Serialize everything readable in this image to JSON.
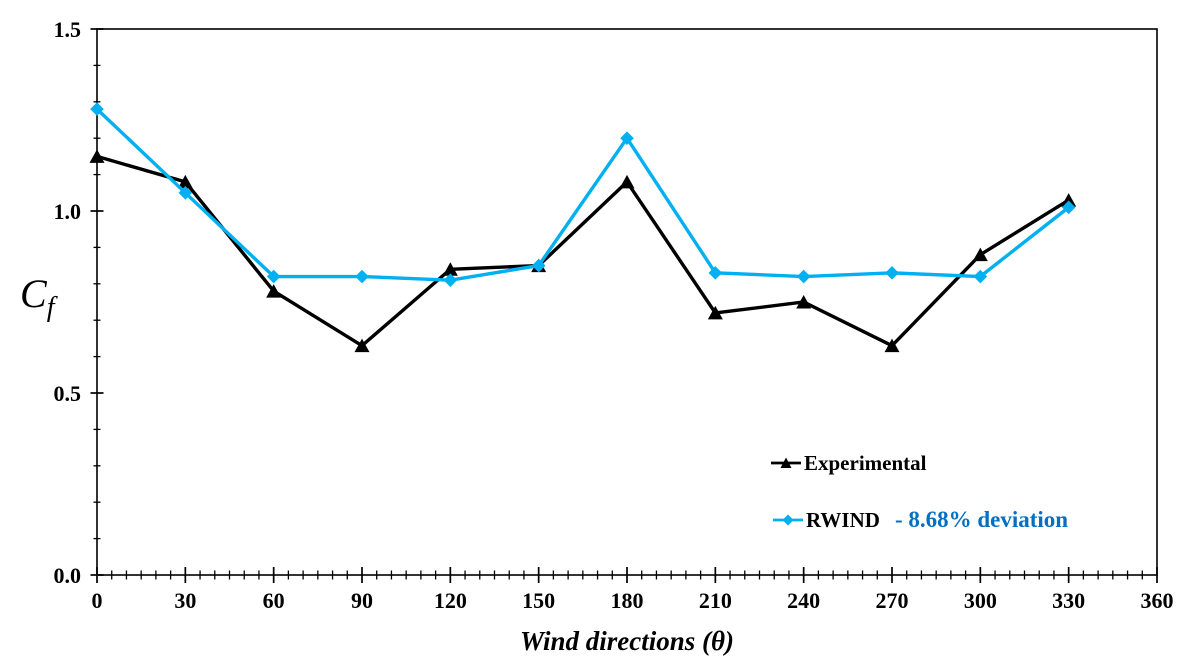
{
  "chart_data": {
    "type": "line",
    "title": "",
    "xlabel": "Wind directions (θ)",
    "ylabel": "Cf",
    "ylabel_base": "C",
    "ylabel_subscript": "f",
    "xlim": [
      0,
      360
    ],
    "ylim": [
      0,
      1.5
    ],
    "grid": false,
    "x_major_step": 30,
    "x_minor_step": 5,
    "y_major_step": 0.5,
    "y_minor_step": 0.1,
    "x_tick_labels": [
      "0",
      "30",
      "60",
      "90",
      "120",
      "150",
      "180",
      "210",
      "240",
      "270",
      "300",
      "330",
      "360"
    ],
    "y_tick_labels": [
      "0.0",
      "0.5",
      "1.0",
      "1.5"
    ],
    "x": [
      0,
      30,
      60,
      90,
      120,
      150,
      180,
      210,
      240,
      270,
      300,
      330
    ],
    "series": [
      {
        "name": "Experimental",
        "color": "#000000",
        "marker": "triangle",
        "values": [
          1.15,
          1.08,
          0.78,
          0.63,
          0.84,
          0.85,
          1.08,
          0.72,
          0.75,
          0.63,
          0.88,
          1.03
        ]
      },
      {
        "name": "RWIND",
        "color": "#00B0F0",
        "marker": "diamond",
        "values": [
          1.28,
          1.05,
          0.82,
          0.82,
          0.81,
          0.85,
          1.2,
          0.83,
          0.82,
          0.83,
          0.82,
          1.01
        ]
      }
    ],
    "legend": {
      "position": "inside-lower-right",
      "entries": [
        {
          "label": "Experimental",
          "color": "#000000",
          "marker": "triangle",
          "note": "",
          "note_color": ""
        },
        {
          "label": "RWIND",
          "color": "#00B0F0",
          "marker": "diamond",
          "note": "- 8.68% deviation",
          "note_color": "#0070C0"
        }
      ]
    }
  }
}
